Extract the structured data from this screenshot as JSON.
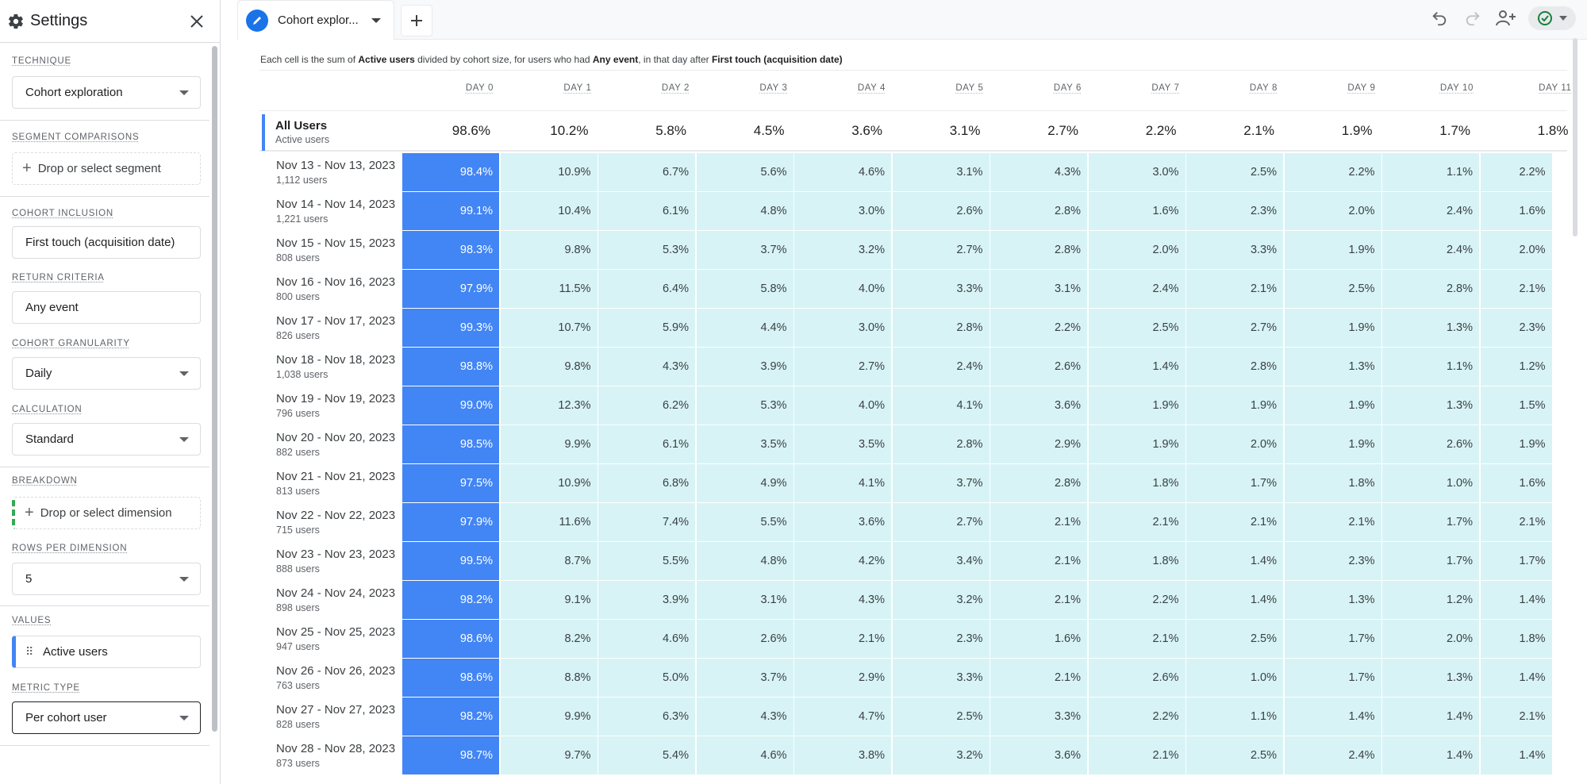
{
  "sidebar": {
    "title": "Settings",
    "technique": {
      "label": "TECHNIQUE",
      "value": "Cohort exploration"
    },
    "segment_comparisons": {
      "label": "SEGMENT COMPARISONS",
      "placeholder": "Drop or select segment"
    },
    "cohort_inclusion": {
      "label": "COHORT INCLUSION",
      "value": "First touch (acquisition date)"
    },
    "return_criteria": {
      "label": "RETURN CRITERIA",
      "value": "Any event"
    },
    "cohort_granularity": {
      "label": "COHORT GRANULARITY",
      "value": "Daily"
    },
    "calculation": {
      "label": "CALCULATION",
      "value": "Standard"
    },
    "breakdown": {
      "label": "BREAKDOWN",
      "placeholder": "Drop or select dimension"
    },
    "rows_per_dimension": {
      "label": "ROWS PER DIMENSION",
      "value": "5"
    },
    "values": {
      "label": "VALUES",
      "value": "Active users"
    },
    "metric_type": {
      "label": "METRIC TYPE",
      "value": "Per cohort user"
    }
  },
  "tabs": [
    {
      "label": "Cohort explor..."
    }
  ],
  "description": {
    "p1": "Each cell is the sum of ",
    "metric": "Active users",
    "p2": " divided by cohort size, for users who had ",
    "event": "Any event",
    "p3": ", in that day after ",
    "inclusion": "First touch (acquisition date)"
  },
  "table": {
    "columns": [
      "DAY 0",
      "DAY 1",
      "DAY 2",
      "DAY 3",
      "DAY 4",
      "DAY 5",
      "DAY 6",
      "DAY 7",
      "DAY 8",
      "DAY 9",
      "DAY 10",
      "DAY 11"
    ],
    "totals": {
      "label": "All Users",
      "sub": "Active users",
      "values": [
        "98.6%",
        "10.2%",
        "5.8%",
        "4.5%",
        "3.6%",
        "3.1%",
        "2.7%",
        "2.2%",
        "2.1%",
        "1.9%",
        "1.7%",
        "1.8%"
      ]
    },
    "rows": [
      {
        "label": "Nov 13 - Nov 13, 2023",
        "sub": "1,112 users",
        "values": [
          "98.4%",
          "10.9%",
          "6.7%",
          "5.6%",
          "4.6%",
          "3.1%",
          "4.3%",
          "3.0%",
          "2.5%",
          "2.2%",
          "1.1%",
          "2.2%"
        ]
      },
      {
        "label": "Nov 14 - Nov 14, 2023",
        "sub": "1,221 users",
        "values": [
          "99.1%",
          "10.4%",
          "6.1%",
          "4.8%",
          "3.0%",
          "2.6%",
          "2.8%",
          "1.6%",
          "2.3%",
          "2.0%",
          "2.4%",
          "1.6%"
        ]
      },
      {
        "label": "Nov 15 - Nov 15, 2023",
        "sub": "808 users",
        "values": [
          "98.3%",
          "9.8%",
          "5.3%",
          "3.7%",
          "3.2%",
          "2.7%",
          "2.8%",
          "2.0%",
          "3.3%",
          "1.9%",
          "2.4%",
          "2.0%"
        ]
      },
      {
        "label": "Nov 16 - Nov 16, 2023",
        "sub": "800 users",
        "values": [
          "97.9%",
          "11.5%",
          "6.4%",
          "5.8%",
          "4.0%",
          "3.3%",
          "3.1%",
          "2.4%",
          "2.1%",
          "2.5%",
          "2.8%",
          "2.1%"
        ]
      },
      {
        "label": "Nov 17 - Nov 17, 2023",
        "sub": "826 users",
        "values": [
          "99.3%",
          "10.7%",
          "5.9%",
          "4.4%",
          "3.0%",
          "2.8%",
          "2.2%",
          "2.5%",
          "2.7%",
          "1.9%",
          "1.3%",
          "2.3%"
        ]
      },
      {
        "label": "Nov 18 - Nov 18, 2023",
        "sub": "1,038 users",
        "values": [
          "98.8%",
          "9.8%",
          "4.3%",
          "3.9%",
          "2.7%",
          "2.4%",
          "2.6%",
          "1.4%",
          "2.8%",
          "1.3%",
          "1.1%",
          "1.2%"
        ]
      },
      {
        "label": "Nov 19 - Nov 19, 2023",
        "sub": "796 users",
        "values": [
          "99.0%",
          "12.3%",
          "6.2%",
          "5.3%",
          "4.0%",
          "4.1%",
          "3.6%",
          "1.9%",
          "1.9%",
          "1.9%",
          "1.3%",
          "1.5%"
        ]
      },
      {
        "label": "Nov 20 - Nov 20, 2023",
        "sub": "882 users",
        "values": [
          "98.5%",
          "9.9%",
          "6.1%",
          "3.5%",
          "3.5%",
          "2.8%",
          "2.9%",
          "1.9%",
          "2.0%",
          "1.9%",
          "2.6%",
          "1.9%"
        ]
      },
      {
        "label": "Nov 21 - Nov 21, 2023",
        "sub": "813 users",
        "values": [
          "97.5%",
          "10.9%",
          "6.8%",
          "4.9%",
          "4.1%",
          "3.7%",
          "2.8%",
          "1.8%",
          "1.7%",
          "1.8%",
          "1.0%",
          "1.6%"
        ]
      },
      {
        "label": "Nov 22 - Nov 22, 2023",
        "sub": "715 users",
        "values": [
          "97.9%",
          "11.6%",
          "7.4%",
          "5.5%",
          "3.6%",
          "2.7%",
          "2.1%",
          "2.1%",
          "2.1%",
          "2.1%",
          "1.7%",
          "2.1%"
        ]
      },
      {
        "label": "Nov 23 - Nov 23, 2023",
        "sub": "888 users",
        "values": [
          "99.5%",
          "8.7%",
          "5.5%",
          "4.8%",
          "4.2%",
          "3.4%",
          "2.1%",
          "1.8%",
          "1.4%",
          "2.3%",
          "1.7%",
          "1.7%"
        ]
      },
      {
        "label": "Nov 24 - Nov 24, 2023",
        "sub": "898 users",
        "values": [
          "98.2%",
          "9.1%",
          "3.9%",
          "3.1%",
          "4.3%",
          "3.2%",
          "2.1%",
          "2.2%",
          "1.4%",
          "1.3%",
          "1.2%",
          "1.4%"
        ]
      },
      {
        "label": "Nov 25 - Nov 25, 2023",
        "sub": "947 users",
        "values": [
          "98.6%",
          "8.2%",
          "4.6%",
          "2.6%",
          "2.1%",
          "2.3%",
          "1.6%",
          "2.1%",
          "2.5%",
          "1.7%",
          "2.0%",
          "1.8%"
        ]
      },
      {
        "label": "Nov 26 - Nov 26, 2023",
        "sub": "763 users",
        "values": [
          "98.6%",
          "8.8%",
          "5.0%",
          "3.7%",
          "2.9%",
          "3.3%",
          "2.1%",
          "2.6%",
          "1.0%",
          "1.7%",
          "1.3%",
          "1.4%"
        ]
      },
      {
        "label": "Nov 27 - Nov 27, 2023",
        "sub": "828 users",
        "values": [
          "98.2%",
          "9.9%",
          "6.3%",
          "4.3%",
          "4.7%",
          "2.5%",
          "3.3%",
          "2.2%",
          "1.1%",
          "1.4%",
          "1.4%",
          "2.1%"
        ]
      },
      {
        "label": "Nov 28 - Nov 28, 2023",
        "sub": "873 users",
        "values": [
          "98.7%",
          "9.7%",
          "5.4%",
          "4.6%",
          "3.8%",
          "3.2%",
          "3.6%",
          "2.1%",
          "2.5%",
          "2.4%",
          "1.4%",
          "1.4%"
        ]
      }
    ]
  },
  "colors": {
    "accent": "#4285f4",
    "cell_bg": "#d7f3f5",
    "primary": "#1a73e8"
  },
  "icons": [
    "gear-icon",
    "close-icon",
    "pencil-icon",
    "plus-icon",
    "undo-icon",
    "redo-icon",
    "share-icon",
    "check-circle-icon",
    "drag-handle-icon"
  ]
}
